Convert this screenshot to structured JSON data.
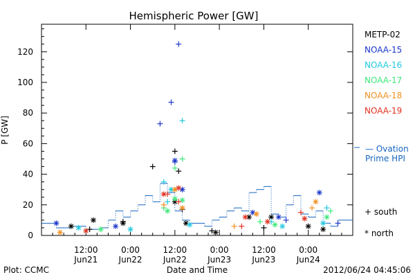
{
  "footer": {
    "left": "Plot: CCMC",
    "center": "Date and Time",
    "right": "2012/06/24 04:45:06"
  },
  "legend": {
    "satellites": [
      {
        "name": "METP-02",
        "color": "#000000"
      },
      {
        "name": "NOAA-15",
        "color": "#1a35c8"
      },
      {
        "name": "NOAA-16",
        "color": "#20c8e0"
      },
      {
        "name": "NOAA-17",
        "color": "#3ee87a"
      },
      {
        "name": "NOAA-18",
        "color": "#f09020"
      },
      {
        "name": "NOAA-19",
        "color": "#e03020"
      }
    ],
    "ovation_line1": "— Ovation",
    "ovation_line2": "Prime HPI",
    "ovation_color": "#1565c0",
    "south": "+ south",
    "north": "* north"
  },
  "chart_data": {
    "type": "scatter",
    "title": "Hemispheric Power [GW]",
    "xlabel": "Date and Time",
    "ylabel": "P [GW]",
    "xlim": [
      0,
      84
    ],
    "ylim": [
      0,
      138
    ],
    "x_units": "hours from 2012-06-21 00:00",
    "yticks": [
      0,
      20,
      40,
      60,
      80,
      100,
      120
    ],
    "xticks": [
      {
        "x": 12,
        "time": "12:00",
        "date": "Jun21"
      },
      {
        "x": 24,
        "time": "0:00",
        "date": "Jun22"
      },
      {
        "x": 36,
        "time": "12:00",
        "date": "Jun22"
      },
      {
        "x": 48,
        "time": "0:00",
        "date": "Jun23"
      },
      {
        "x": 60,
        "time": "12:00",
        "date": "Jun23"
      },
      {
        "x": 72,
        "time": "0:00",
        "date": "Jun24"
      }
    ],
    "ovation": {
      "color": "#1565c0",
      "points": [
        [
          0,
          8
        ],
        [
          4,
          8
        ],
        [
          4,
          5
        ],
        [
          8,
          5
        ],
        [
          8,
          6
        ],
        [
          12,
          6
        ],
        [
          12,
          4
        ],
        [
          16,
          4
        ],
        [
          16,
          5
        ],
        [
          18,
          5
        ],
        [
          18,
          10
        ],
        [
          20,
          10
        ],
        [
          20,
          16
        ],
        [
          22,
          16
        ],
        [
          22,
          12
        ],
        [
          24,
          12
        ],
        [
          24,
          16
        ],
        [
          26,
          16
        ],
        [
          26,
          20
        ],
        [
          28,
          20
        ],
        [
          28,
          26
        ],
        [
          30,
          26
        ],
        [
          30,
          22
        ],
        [
          32,
          22
        ],
        [
          32,
          34
        ],
        [
          34,
          34
        ],
        [
          34,
          28
        ],
        [
          36,
          28
        ],
        [
          36,
          16
        ],
        [
          38,
          16
        ],
        [
          38,
          10
        ],
        [
          40,
          10
        ],
        [
          40,
          8
        ],
        [
          44,
          8
        ],
        [
          44,
          6
        ],
        [
          46,
          6
        ],
        [
          46,
          10
        ],
        [
          48,
          10
        ],
        [
          48,
          12
        ],
        [
          50,
          12
        ],
        [
          50,
          16
        ],
        [
          52,
          16
        ],
        [
          52,
          18
        ],
        [
          54,
          18
        ],
        [
          54,
          16
        ],
        [
          56,
          16
        ],
        [
          56,
          28
        ],
        [
          58,
          28
        ],
        [
          58,
          30
        ],
        [
          60,
          30
        ],
        [
          60,
          32
        ],
        [
          62,
          32
        ],
        [
          62,
          14
        ],
        [
          64,
          14
        ],
        [
          64,
          12
        ],
        [
          66,
          12
        ],
        [
          66,
          20
        ],
        [
          68,
          20
        ],
        [
          68,
          26
        ],
        [
          70,
          26
        ],
        [
          70,
          14
        ],
        [
          72,
          14
        ],
        [
          72,
          12
        ],
        [
          74,
          12
        ],
        [
          74,
          16
        ],
        [
          76,
          16
        ],
        [
          76,
          8
        ],
        [
          78,
          8
        ],
        [
          78,
          6
        ],
        [
          80,
          6
        ],
        [
          80,
          10
        ],
        [
          84,
          10
        ]
      ]
    },
    "series": [
      {
        "name": "METP-02",
        "color": "#000000",
        "south": [
          [
            30,
            45
          ],
          [
            36,
            55
          ],
          [
            37,
            42
          ],
          [
            38,
            17
          ],
          [
            22,
            9
          ],
          [
            13,
            4
          ],
          [
            46,
            3
          ],
          [
            60,
            5
          ]
        ],
        "north": [
          [
            14,
            10
          ],
          [
            22,
            8
          ],
          [
            36,
            22
          ],
          [
            39,
            8
          ],
          [
            56,
            12
          ],
          [
            62,
            12
          ],
          [
            72,
            6
          ],
          [
            76,
            4
          ],
          [
            8,
            6
          ],
          [
            47,
            2
          ]
        ]
      },
      {
        "name": "NOAA-15",
        "color": "#1a35c8",
        "south": [
          [
            32,
            73
          ],
          [
            35,
            87
          ],
          [
            37,
            125
          ],
          [
            36,
            48
          ],
          [
            66,
            10
          ],
          [
            80,
            8
          ]
        ],
        "north": [
          [
            36,
            49
          ],
          [
            38,
            30
          ],
          [
            64,
            12
          ],
          [
            75,
            28
          ],
          [
            4,
            8
          ],
          [
            20,
            6
          ],
          [
            57,
            15
          ]
        ]
      },
      {
        "name": "NOAA-16",
        "color": "#20c8e0",
        "south": [
          [
            33,
            35
          ],
          [
            38,
            75
          ],
          [
            34,
            22
          ],
          [
            62,
            9
          ],
          [
            77,
            18
          ]
        ],
        "north": [
          [
            35,
            30
          ],
          [
            40,
            7
          ],
          [
            65,
            6
          ],
          [
            76,
            8
          ],
          [
            10,
            5
          ],
          [
            24,
            4
          ]
        ]
      },
      {
        "name": "NOAA-17",
        "color": "#3ee87a",
        "south": [
          [
            36,
            44
          ],
          [
            38,
            50
          ],
          [
            33,
            18
          ],
          [
            78,
            16
          ],
          [
            59,
            9
          ]
        ],
        "north": [
          [
            36,
            24
          ],
          [
            38,
            23
          ],
          [
            34,
            16
          ],
          [
            77,
            12
          ],
          [
            63,
            7
          ],
          [
            16,
            4
          ]
        ]
      },
      {
        "name": "NOAA-18",
        "color": "#f09020",
        "south": [
          [
            36,
            30
          ],
          [
            33,
            20
          ],
          [
            73,
            18
          ],
          [
            52,
            6
          ]
        ],
        "north": [
          [
            36,
            30
          ],
          [
            38,
            18
          ],
          [
            74,
            22
          ],
          [
            58,
            14
          ],
          [
            5,
            2
          ]
        ]
      },
      {
        "name": "NOAA-19",
        "color": "#e03020",
        "south": [
          [
            34,
            27
          ],
          [
            37,
            22
          ],
          [
            70,
            15
          ],
          [
            54,
            6
          ]
        ],
        "north": [
          [
            33,
            27
          ],
          [
            37,
            31
          ],
          [
            71,
            11
          ],
          [
            55,
            12
          ],
          [
            61,
            9
          ],
          [
            12,
            3
          ]
        ]
      }
    ]
  }
}
